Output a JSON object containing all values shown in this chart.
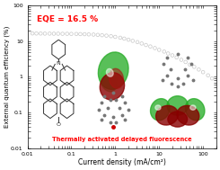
{
  "title": "",
  "xlabel": "Current density (mA/cm²)",
  "ylabel": "External quantum efficiency (%)",
  "xlim": [
    0.01,
    200
  ],
  "ylim": [
    0.01,
    100
  ],
  "eqe_label": "EQE = 16.5 %",
  "bottom_label": "Thermally activated delayed fluorescence",
  "scatter_color": "#c8c8c8",
  "background_color": "#ffffff",
  "x_data": [
    0.013,
    0.016,
    0.02,
    0.025,
    0.032,
    0.04,
    0.05,
    0.063,
    0.08,
    0.1,
    0.13,
    0.16,
    0.2,
    0.25,
    0.32,
    0.4,
    0.5,
    0.63,
    0.8,
    1.0,
    1.3,
    1.6,
    2.0,
    2.5,
    3.2,
    4.0,
    5.0,
    6.3,
    8.0,
    10.0,
    13.0,
    16.0,
    20.0,
    25.0,
    32.0,
    40.0,
    50.0,
    63.0,
    80.0,
    100.0,
    130.0,
    160.0
  ],
  "y_data": [
    16.5,
    16.4,
    16.4,
    16.3,
    16.3,
    16.2,
    16.2,
    16.1,
    16.1,
    16.0,
    15.9,
    15.8,
    15.7,
    15.5,
    15.3,
    15.0,
    14.7,
    14.3,
    13.8,
    13.2,
    12.5,
    11.8,
    11.0,
    10.2,
    9.4,
    8.6,
    7.8,
    7.1,
    6.4,
    5.7,
    5.1,
    4.5,
    4.0,
    3.5,
    3.0,
    2.6,
    2.2,
    1.9,
    1.6,
    1.35,
    1.1,
    0.9
  ]
}
